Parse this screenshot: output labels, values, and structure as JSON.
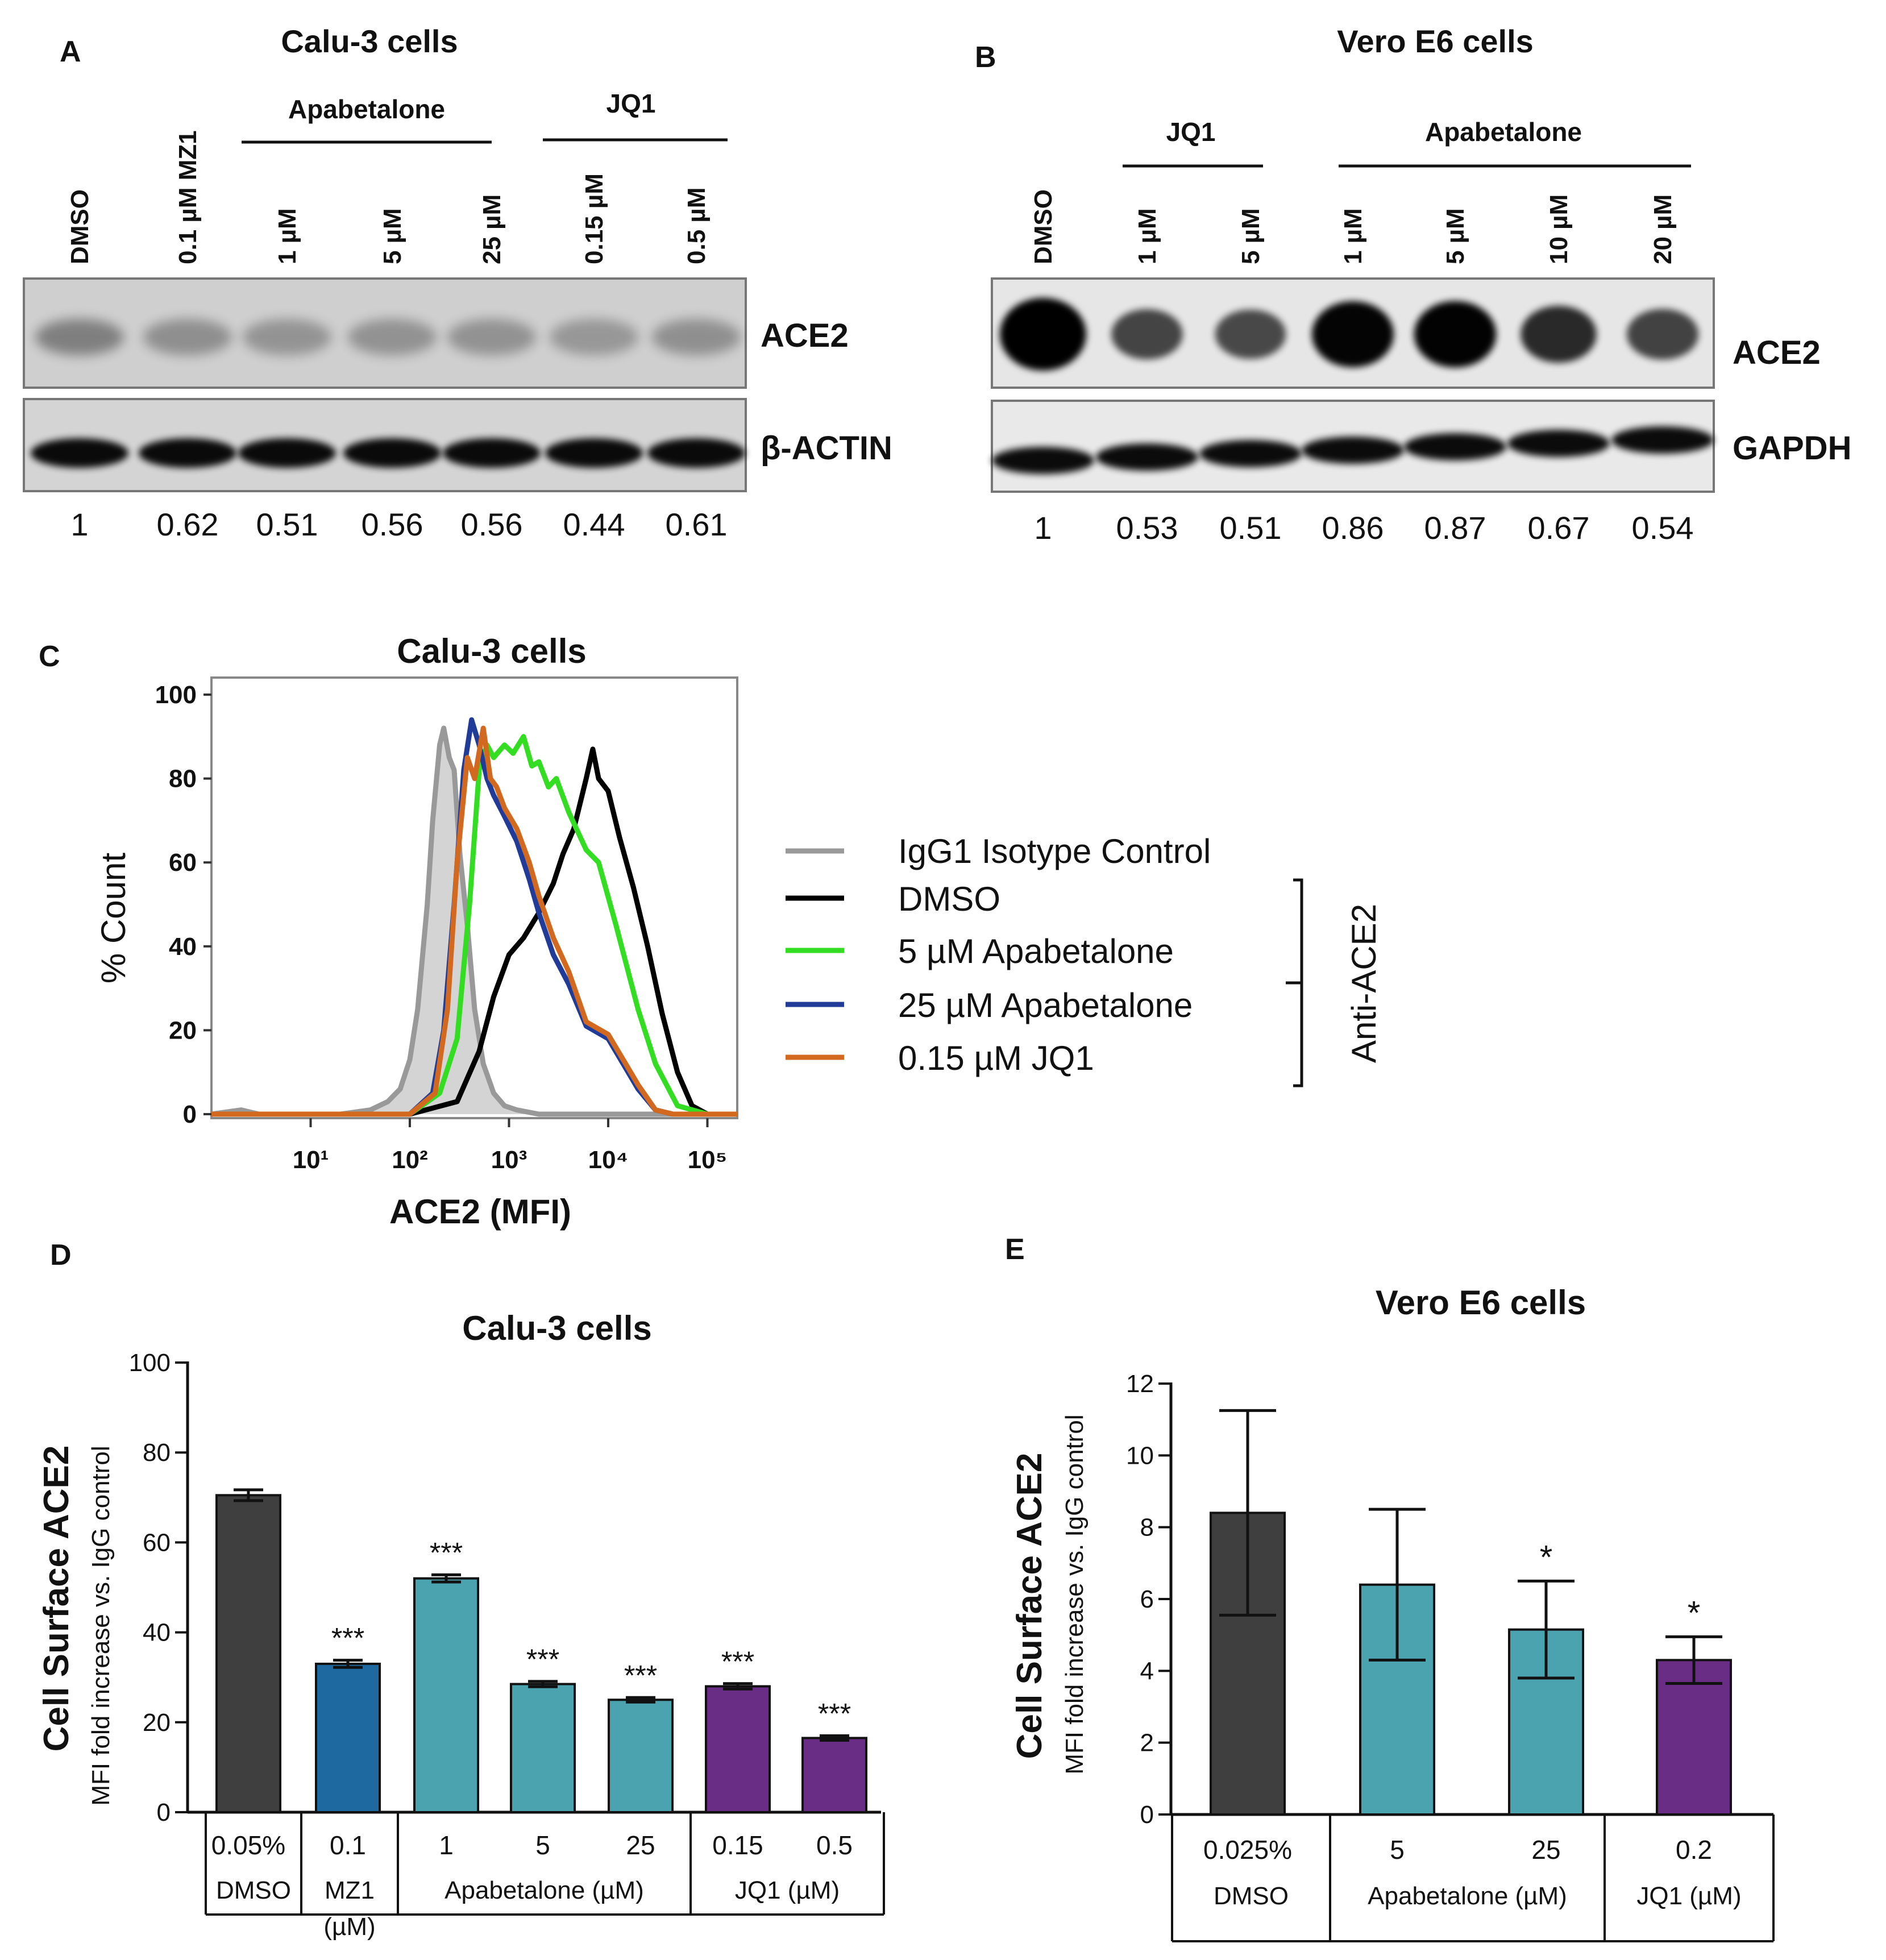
{
  "colors": {
    "dmso_bar": "#3f3f3f",
    "mz1_bar": "#1e6aa0",
    "apabetalone_bar": "#4ba3b0",
    "jq1_bar": "#6a2d86",
    "isotype_line": "#999999",
    "isotype_fill": "#d4d4d4",
    "dmso_line": "#000000",
    "apa5_line": "#33dd22",
    "apa25_line": "#203c98",
    "jq1_line": "#d2691e"
  },
  "panel_a": {
    "letter": "A",
    "title": "Calu-3 cells",
    "group_labels": [
      "Apabetalone",
      "JQ1"
    ],
    "lanes": [
      "DMSO",
      "0.1 µM MZ1",
      "1 µM",
      "5 µM",
      "25 µM",
      "0.15 µM",
      "0.5 µM"
    ],
    "blot_labels": [
      "ACE2",
      "β-ACTIN"
    ],
    "quant": [
      "1",
      "0.62",
      "0.51",
      "0.56",
      "0.56",
      "0.44",
      "0.61"
    ]
  },
  "panel_b": {
    "letter": "B",
    "title": "Vero E6 cells",
    "group_labels": [
      "JQ1",
      "Apabetalone"
    ],
    "lanes": [
      "DMSO",
      "1 µM",
      "5 µM",
      "1 µM",
      "5 µM",
      "10 µM",
      "20 µM"
    ],
    "blot_labels": [
      "ACE2",
      "GAPDH"
    ],
    "quant": [
      "1",
      "0.53",
      "0.51",
      "0.86",
      "0.87",
      "0.67",
      "0.54"
    ]
  },
  "panel_c": {
    "letter": "C",
    "title": "Calu-3 cells",
    "xlabel": "ACE2 (MFI)",
    "ylabel": "% Count",
    "bracket_label": "Anti-ACE2",
    "legend": [
      "IgG1 Isotype Control",
      "DMSO",
      "5 µM Apabetalone",
      "25 µM Apabetalone",
      "0.15 µM JQ1"
    ]
  },
  "panel_d_meta": {
    "letter": "D"
  },
  "panel_e_meta": {
    "letter": "E"
  },
  "chart_data": [
    {
      "type": "line",
      "panel": "C",
      "title": "Calu-3 cells",
      "xlabel": "ACE2 (MFI)",
      "ylabel": "% Count",
      "xscale": "log",
      "xlim": [
        1,
        200000
      ],
      "ylim": [
        0,
        100
      ],
      "xticks": [
        {
          "v": 10,
          "label": "10¹"
        },
        {
          "v": 100,
          "label": "10²"
        },
        {
          "v": 1000,
          "label": "10³"
        },
        {
          "v": 10000,
          "label": "10⁴"
        },
        {
          "v": 100000,
          "label": "10⁵"
        }
      ],
      "yticks": [
        0,
        20,
        40,
        60,
        80,
        100
      ],
      "series": [
        {
          "name": "IgG1 Isotype Control",
          "filled": true,
          "x": [
            1,
            2,
            3,
            5,
            10,
            20,
            40,
            60,
            80,
            100,
            120,
            150,
            170,
            200,
            220,
            250,
            280,
            320,
            380,
            450,
            550,
            700,
            900,
            1200,
            2000,
            5000,
            200000
          ],
          "y": [
            0,
            1,
            0,
            0,
            0,
            0,
            1,
            3,
            6,
            13,
            25,
            50,
            70,
            88,
            92,
            85,
            82,
            62,
            45,
            25,
            12,
            5,
            2,
            1,
            0,
            0,
            0
          ]
        },
        {
          "name": "DMSO",
          "x": [
            1,
            100,
            300,
            500,
            700,
            1000,
            1400,
            2000,
            2800,
            3500,
            4500,
            6000,
            7000,
            8000,
            10000,
            13000,
            18000,
            25000,
            35000,
            50000,
            70000,
            100000,
            200000
          ],
          "y": [
            0,
            0,
            3,
            15,
            28,
            38,
            42,
            48,
            55,
            62,
            68,
            80,
            87,
            80,
            77,
            66,
            54,
            40,
            24,
            10,
            2,
            0,
            0
          ]
        },
        {
          "name": "5 µM Apabetalone",
          "x": [
            1,
            100,
            200,
            300,
            400,
            500,
            600,
            700,
            900,
            1100,
            1400,
            1700,
            2000,
            2500,
            3000,
            4000,
            6000,
            8000,
            12000,
            20000,
            30000,
            50000,
            100000,
            200000
          ],
          "y": [
            0,
            0,
            5,
            18,
            50,
            82,
            88,
            85,
            88,
            86,
            90,
            83,
            84,
            78,
            80,
            72,
            63,
            60,
            45,
            25,
            12,
            2,
            0,
            0
          ]
        },
        {
          "name": "25 µM Apabetalone",
          "x": [
            1,
            100,
            170,
            220,
            280,
            350,
            420,
            500,
            600,
            700,
            900,
            1200,
            1600,
            2000,
            2800,
            4000,
            6000,
            10000,
            15000,
            20000,
            30000,
            45000,
            200000
          ],
          "y": [
            0,
            0,
            5,
            20,
            50,
            82,
            94,
            88,
            80,
            76,
            71,
            65,
            56,
            48,
            38,
            31,
            21,
            18,
            11,
            6,
            1,
            0,
            0
          ]
        },
        {
          "name": "0.15 µM JQ1",
          "x": [
            1,
            100,
            180,
            240,
            300,
            380,
            450,
            550,
            650,
            750,
            900,
            1200,
            1600,
            2000,
            2800,
            4000,
            6000,
            10000,
            15000,
            20000,
            30000,
            45000,
            200000
          ],
          "y": [
            0,
            0,
            5,
            25,
            60,
            85,
            80,
            92,
            80,
            78,
            73,
            68,
            60,
            52,
            42,
            34,
            22,
            19,
            12,
            7,
            1,
            0,
            0
          ]
        }
      ]
    },
    {
      "type": "bar",
      "panel": "D",
      "title": "Calu-3 cells",
      "ylabel": "Cell Surface ACE2",
      "ylabel2": "MFI fold increase vs. IgG control",
      "ylim": [
        0,
        100
      ],
      "yticks": [
        0,
        20,
        40,
        60,
        80,
        100
      ],
      "categories": [
        "0.05%",
        "0.1",
        "1",
        "5",
        "25",
        "0.15",
        "0.5"
      ],
      "values": [
        70.5,
        33,
        52,
        28.5,
        25,
        28,
        16.5
      ],
      "errors": [
        1.2,
        0.8,
        0.8,
        0.6,
        0.5,
        0.6,
        0.5
      ],
      "significance": [
        "",
        "***",
        "***",
        "***",
        "***",
        "***",
        "***"
      ],
      "groups": [
        {
          "label": "DMSO",
          "span": [
            0,
            0
          ],
          "color": "dmso_bar"
        },
        {
          "label": "MZ1 (µM)",
          "span": [
            1,
            1
          ],
          "color": "mz1_bar"
        },
        {
          "label": "Apabetalone (µM)",
          "span": [
            2,
            4
          ],
          "color": "apabetalone_bar"
        },
        {
          "label": "JQ1 (µM)",
          "span": [
            5,
            6
          ],
          "color": "jq1_bar"
        }
      ]
    },
    {
      "type": "bar",
      "panel": "E",
      "title": "Vero E6 cells",
      "ylabel": "Cell Surface ACE2",
      "ylabel2": "MFI fold increase vs. IgG control",
      "ylim": [
        0,
        12
      ],
      "yticks": [
        0,
        2,
        4,
        6,
        8,
        10,
        12
      ],
      "categories": [
        "0.025%",
        "5",
        "25",
        "0.2"
      ],
      "values": [
        8.4,
        6.4,
        5.15,
        4.3
      ],
      "errors": [
        2.85,
        2.1,
        1.35,
        0.65
      ],
      "significance": [
        "",
        "",
        "*",
        "*"
      ],
      "groups": [
        {
          "label": "DMSO",
          "span": [
            0,
            0
          ],
          "color": "dmso_bar"
        },
        {
          "label": "Apabetalone (µM)",
          "span": [
            1,
            2
          ],
          "color": "apabetalone_bar"
        },
        {
          "label": "JQ1 (µM)",
          "span": [
            3,
            3
          ],
          "color": "jq1_bar"
        }
      ]
    }
  ]
}
